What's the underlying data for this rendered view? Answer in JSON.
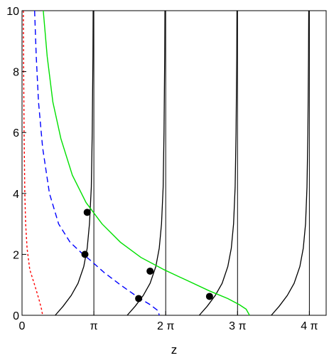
{
  "chart_data": {
    "type": "line",
    "xlabel": "z",
    "ylabel": "",
    "xlim": [
      0,
      13.3
    ],
    "ylim": [
      0,
      10
    ],
    "grid": false,
    "x_ticks": [
      {
        "value": 0,
        "label": "0"
      },
      {
        "value": 3.1416,
        "label": "π"
      },
      {
        "value": 6.2832,
        "label": "2 π"
      },
      {
        "value": 9.4248,
        "label": "3 π"
      },
      {
        "value": 12.5664,
        "label": "4 π"
      }
    ],
    "y_ticks": [
      {
        "value": 0,
        "label": "0"
      },
      {
        "value": 2,
        "label": "2"
      },
      {
        "value": 4,
        "label": "4"
      },
      {
        "value": 6,
        "label": "6"
      },
      {
        "value": 8,
        "label": "8"
      },
      {
        "value": 10,
        "label": "10"
      }
    ],
    "vertical_lines": [
      3.1416,
      6.2832,
      9.4248,
      12.5664
    ],
    "branch_curves": [
      {
        "points": [
          [
            1.45,
            0
          ],
          [
            1.8,
            0.3
          ],
          [
            2.15,
            0.65
          ],
          [
            2.45,
            1.05
          ],
          [
            2.7,
            1.6
          ],
          [
            2.85,
            2.2
          ],
          [
            2.95,
            3.0
          ],
          [
            3.03,
            4.2
          ],
          [
            3.07,
            6.0
          ],
          [
            3.1,
            8.5
          ],
          [
            3.11,
            10
          ]
        ]
      },
      {
        "points": [
          [
            4.6,
            0
          ],
          [
            4.95,
            0.3
          ],
          [
            5.3,
            0.65
          ],
          [
            5.6,
            1.05
          ],
          [
            5.85,
            1.6
          ],
          [
            6.0,
            2.2
          ],
          [
            6.1,
            3.0
          ],
          [
            6.17,
            4.2
          ],
          [
            6.21,
            6.0
          ],
          [
            6.24,
            8.5
          ],
          [
            6.25,
            10
          ]
        ]
      },
      {
        "points": [
          [
            7.75,
            0
          ],
          [
            8.1,
            0.3
          ],
          [
            8.45,
            0.65
          ],
          [
            8.75,
            1.05
          ],
          [
            9.0,
            1.6
          ],
          [
            9.15,
            2.2
          ],
          [
            9.25,
            3.0
          ],
          [
            9.32,
            4.2
          ],
          [
            9.36,
            6.0
          ],
          [
            9.39,
            8.5
          ],
          [
            9.4,
            10
          ]
        ]
      },
      {
        "points": [
          [
            10.9,
            0
          ],
          [
            11.25,
            0.3
          ],
          [
            11.6,
            0.65
          ],
          [
            11.9,
            1.05
          ],
          [
            12.15,
            1.6
          ],
          [
            12.3,
            2.2
          ],
          [
            12.4,
            3.0
          ],
          [
            12.46,
            4.2
          ],
          [
            12.5,
            6.0
          ],
          [
            12.53,
            8.5
          ],
          [
            12.54,
            10
          ]
        ]
      }
    ],
    "series": [
      {
        "color": "#ff0000",
        "dash": "3,3",
        "points": [
          [
            0.06,
            10
          ],
          [
            0.07,
            8
          ],
          [
            0.09,
            6
          ],
          [
            0.12,
            4
          ],
          [
            0.16,
            3
          ],
          [
            0.22,
            2.2
          ],
          [
            0.34,
            1.5
          ],
          [
            0.55,
            1.0
          ],
          [
            0.75,
            0.5
          ],
          [
            0.85,
            0.2
          ],
          [
            0.9,
            0
          ]
        ]
      },
      {
        "color": "#0000ff",
        "dash": "8,5",
        "points": [
          [
            0.55,
            10
          ],
          [
            0.62,
            8.5
          ],
          [
            0.72,
            7
          ],
          [
            0.9,
            5.5
          ],
          [
            1.2,
            4.0
          ],
          [
            1.6,
            3.0
          ],
          [
            2.1,
            2.4
          ],
          [
            2.6,
            2.05
          ],
          [
            3.0,
            1.8
          ],
          [
            3.6,
            1.4
          ],
          [
            4.3,
            1.0
          ],
          [
            5.1,
            0.58
          ],
          [
            5.6,
            0.35
          ],
          [
            5.95,
            0.15
          ],
          [
            6.0,
            0
          ]
        ]
      },
      {
        "color": "#00e000",
        "dash": "",
        "points": [
          [
            0.93,
            10
          ],
          [
            1.1,
            8.5
          ],
          [
            1.35,
            7
          ],
          [
            1.7,
            5.8
          ],
          [
            2.2,
            4.6
          ],
          [
            2.8,
            3.7
          ],
          [
            3.5,
            3.0
          ],
          [
            4.3,
            2.4
          ],
          [
            5.2,
            1.9
          ],
          [
            6.2,
            1.5
          ],
          [
            7.2,
            1.15
          ],
          [
            8.2,
            0.8
          ],
          [
            9.0,
            0.55
          ],
          [
            9.5,
            0.35
          ],
          [
            9.8,
            0.2
          ],
          [
            9.95,
            0
          ]
        ]
      }
    ],
    "intersections": [
      {
        "x": 2.75,
        "y": 2.0
      },
      {
        "x": 2.85,
        "y": 3.38
      },
      {
        "x": 5.1,
        "y": 0.55
      },
      {
        "x": 5.6,
        "y": 1.45
      },
      {
        "x": 8.2,
        "y": 0.62
      }
    ]
  }
}
